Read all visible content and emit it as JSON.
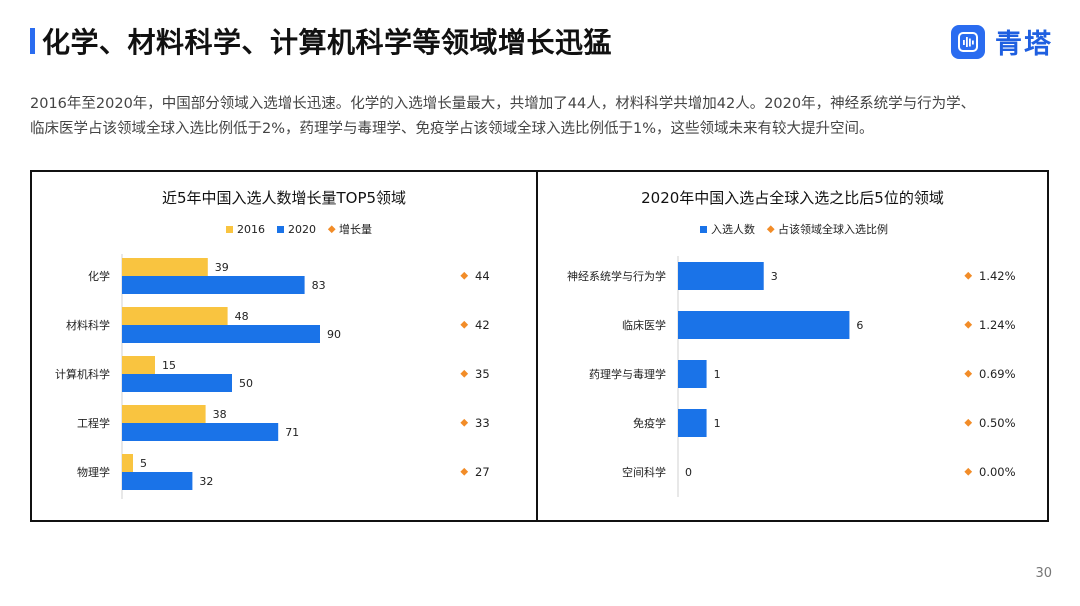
{
  "header": {
    "title": "化学、材料科学、计算机科学等领域增长迅猛",
    "logo_text": "青塔",
    "logo_icon": "soundwave-icon"
  },
  "intro": {
    "line1": "2016年至2020年，中国部分领域入选增长迅速。化学的入选增长量最大，共增加了44人，材料科学共增加42人。2020年，神经系统学与行为学、",
    "line2": "临床医学占该领域全球入选比例低于2%，药理学与毒理学、免疫学占该领域全球入选比例低于1%，这些领域未来有较大提升空间。"
  },
  "page_number": "30",
  "colors": {
    "series_2016": "#f9c440",
    "series_2020": "#1a73e8",
    "marker": "#f28c28",
    "accent": "#2a6cf0"
  },
  "chart_data": [
    {
      "type": "bar",
      "orientation": "horizontal",
      "title": "近5年中国入选人数增长量TOP5领域",
      "categories": [
        "化学",
        "材料科学",
        "计算机科学",
        "工程学",
        "物理学"
      ],
      "series": [
        {
          "name": "2016",
          "values": [
            39,
            48,
            15,
            38,
            5
          ]
        },
        {
          "name": "2020",
          "values": [
            83,
            90,
            50,
            71,
            32
          ]
        }
      ],
      "markers": {
        "name": "增长量",
        "values": [
          "44",
          "42",
          "35",
          "33",
          "27"
        ]
      },
      "xlim": [
        0,
        100
      ],
      "legend": "top",
      "grid": false
    },
    {
      "type": "bar",
      "orientation": "horizontal",
      "title": "2020年中国入选占全球入选之比后5位的领域",
      "categories": [
        "神经系统学与行为学",
        "临床医学",
        "药理学与毒理学",
        "免疫学",
        "空间科学"
      ],
      "series": [
        {
          "name": "入选人数",
          "values": [
            3,
            6,
            1,
            1,
            0
          ]
        }
      ],
      "markers": {
        "name": "占该领域全球入选比例",
        "values": [
          "1.42%",
          "1.24%",
          "0.69%",
          "0.50%",
          "0.00%"
        ]
      },
      "xlim": [
        0,
        7
      ],
      "legend": "top",
      "grid": false
    }
  ]
}
